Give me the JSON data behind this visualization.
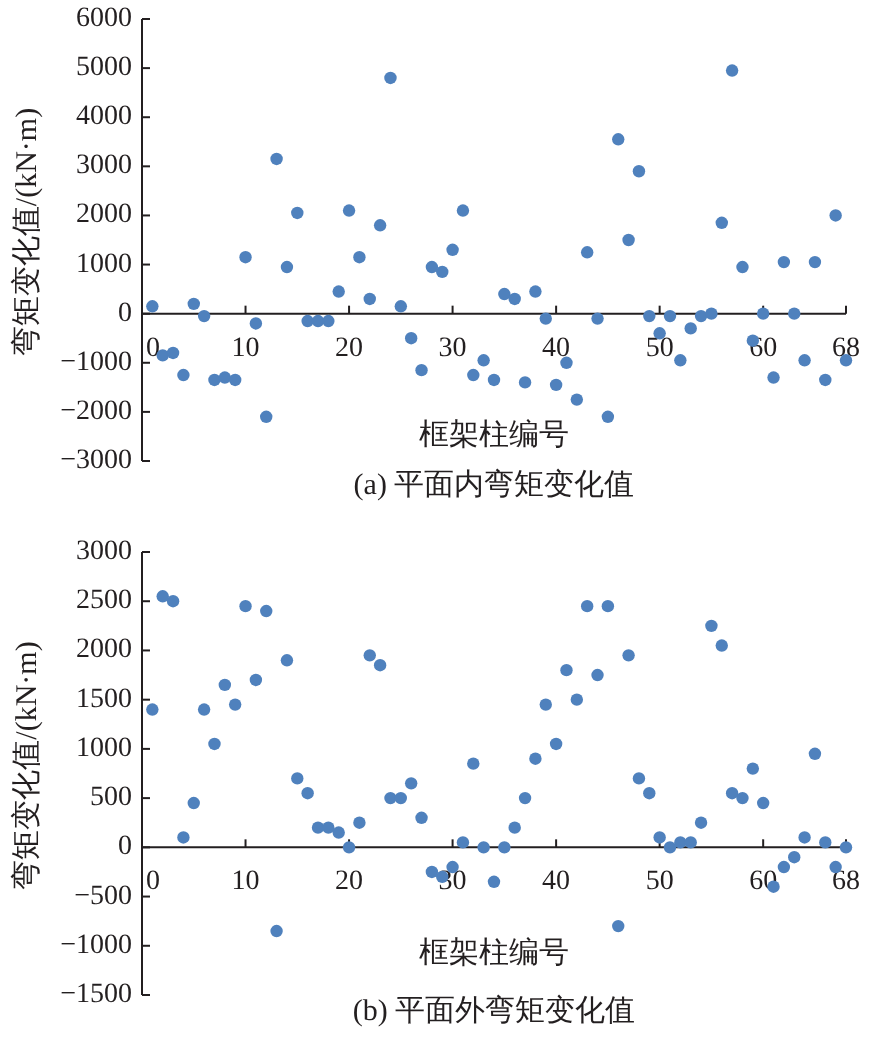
{
  "chart_data": [
    {
      "type": "scatter",
      "title": "(a) 平面内弯矩变化值",
      "xlabel": "框架柱编号",
      "ylabel": "弯矩变化值/(kN·m)",
      "marker": "circle",
      "color": "#4f81bd",
      "x": [
        1,
        2,
        3,
        4,
        5,
        6,
        7,
        8,
        9,
        10,
        11,
        12,
        13,
        14,
        15,
        16,
        17,
        18,
        19,
        20,
        21,
        22,
        23,
        24,
        25,
        26,
        27,
        28,
        29,
        30,
        31,
        32,
        33,
        34,
        35,
        36,
        37,
        38,
        39,
        40,
        41,
        42,
        43,
        44,
        45,
        46,
        47,
        48,
        49,
        50,
        51,
        52,
        53,
        54,
        55,
        56,
        57,
        58,
        59,
        60,
        61,
        62,
        63,
        64,
        65,
        66,
        67,
        68
      ],
      "values": [
        150,
        -850,
        -800,
        -1250,
        200,
        -50,
        -1350,
        -1300,
        -1350,
        1150,
        -200,
        -2100,
        3150,
        950,
        2050,
        -150,
        -150,
        -150,
        450,
        2100,
        1150,
        300,
        1800,
        4800,
        150,
        -500,
        -1150,
        950,
        850,
        1300,
        2100,
        -1250,
        -950,
        -1350,
        400,
        300,
        -1400,
        450,
        -100,
        -1450,
        -1000,
        -1750,
        1250,
        -100,
        -2100,
        3550,
        1500,
        2900,
        -50,
        -400,
        -50,
        -950,
        -300,
        -50,
        0,
        1850,
        4950,
        950,
        -550,
        0,
        -1300,
        1050,
        0,
        -950,
        1050,
        -1350,
        2000,
        -950
      ],
      "xlim": [
        0,
        68
      ],
      "xticks": [
        0,
        10,
        20,
        30,
        40,
        50,
        60,
        68
      ],
      "ylim": [
        -3000,
        6000
      ],
      "yticks": [
        -3000,
        -2000,
        -1000,
        0,
        1000,
        2000,
        3000,
        4000,
        5000,
        6000
      ]
    },
    {
      "type": "scatter",
      "title": "(b) 平面外弯矩变化值",
      "xlabel": "框架柱编号",
      "ylabel": "弯矩变化值/(kN·m)",
      "marker": "circle",
      "color": "#4f81bd",
      "x": [
        1,
        2,
        3,
        4,
        5,
        6,
        7,
        8,
        9,
        10,
        11,
        12,
        13,
        14,
        15,
        16,
        17,
        18,
        19,
        20,
        21,
        22,
        23,
        24,
        25,
        26,
        27,
        28,
        29,
        30,
        31,
        32,
        33,
        34,
        35,
        36,
        37,
        38,
        39,
        40,
        41,
        42,
        43,
        44,
        45,
        46,
        47,
        48,
        49,
        50,
        51,
        52,
        53,
        54,
        55,
        56,
        57,
        58,
        59,
        60,
        61,
        62,
        63,
        64,
        65,
        66,
        67,
        68
      ],
      "values": [
        1400,
        2550,
        2500,
        100,
        450,
        1400,
        1050,
        1650,
        1450,
        2450,
        1700,
        2400,
        -850,
        1900,
        700,
        550,
        200,
        200,
        150,
        0,
        250,
        1950,
        1850,
        500,
        500,
        650,
        300,
        -250,
        -300,
        -200,
        50,
        850,
        0,
        -350,
        0,
        200,
        500,
        900,
        1450,
        1050,
        1800,
        1500,
        2450,
        1750,
        2450,
        -800,
        1950,
        700,
        550,
        100,
        0,
        50,
        50,
        250,
        2250,
        2050,
        550,
        500,
        800,
        450,
        -400,
        -200,
        -100,
        100,
        950,
        50,
        -200,
        0
      ],
      "xlim": [
        0,
        68
      ],
      "xticks": [
        0,
        10,
        20,
        30,
        40,
        50,
        60,
        68
      ],
      "ylim": [
        -1500,
        3000
      ],
      "yticks": [
        -1500,
        -1000,
        -500,
        0,
        500,
        1000,
        1500,
        2000,
        2500,
        3000
      ]
    }
  ]
}
